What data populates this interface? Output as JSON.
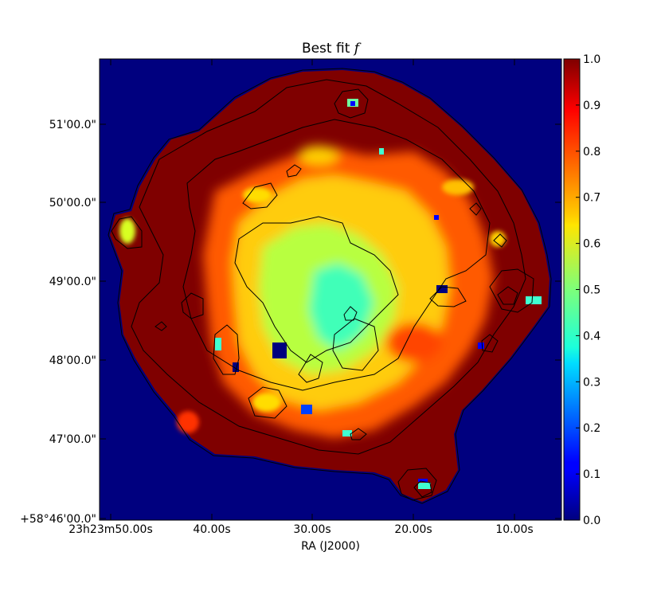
{
  "chart_data": {
    "type": "heatmap",
    "title": "Best fit",
    "title_symbol": "f",
    "xlabel": "RA (J2000)",
    "ylabel": "",
    "x_ticks": [
      "23h23m50.00s",
      "40.00s",
      "30.00s",
      "20.00s",
      "10.00s"
    ],
    "y_ticks": [
      "+58°46'00.0\"",
      "47'00.0\"",
      "48'00.0\"",
      "49'00.0\"",
      "50'00.0\"",
      "51'00.0\""
    ],
    "colorbar": {
      "colormap": "jet",
      "min": 0.0,
      "max": 1.0,
      "ticks": [
        "0.0",
        "0.1",
        "0.2",
        "0.3",
        "0.4",
        "0.5",
        "0.6",
        "0.7",
        "0.8",
        "0.9",
        "1.0"
      ]
    },
    "background_value": 0.0,
    "remnant_shell_value": 1.0,
    "interior_value_range": [
      0.4,
      0.85
    ],
    "contours": true,
    "colors": {
      "background": "#00007f",
      "shell": "#7f0000",
      "contour": "#000000"
    }
  }
}
